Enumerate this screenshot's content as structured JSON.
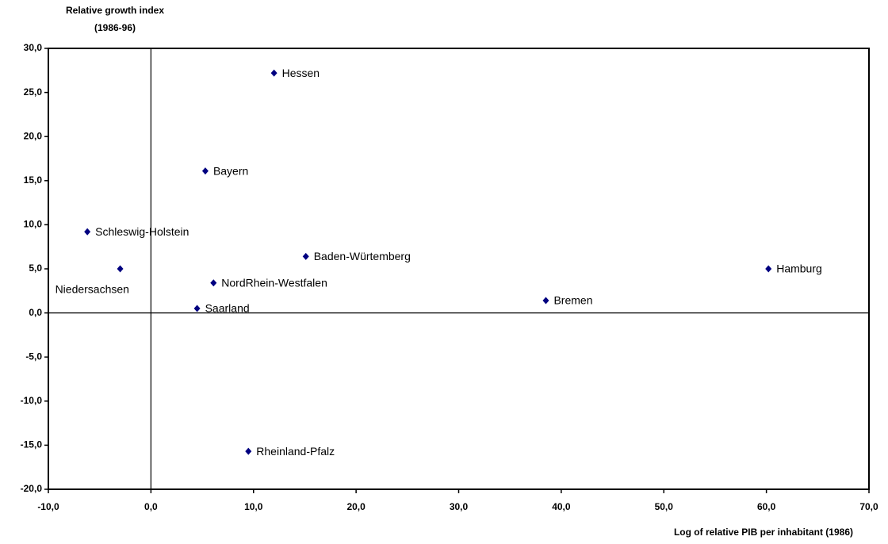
{
  "chart_data": {
    "type": "scatter",
    "y_label": [
      "Relative growth index",
      "(1986-96)"
    ],
    "x_label": "Log of relative PIB per inhabitant (1986)",
    "labels": [
      "Hessen",
      "Bayern",
      "Schleswig-Holstein",
      "Niedersachsen",
      "Baden-Würtemberg",
      "NordRhein-Westfalen",
      "Saarland",
      "Bremen",
      "Hamburg",
      "Rheinland-Pfalz"
    ],
    "x": [
      12.0,
      5.3,
      -6.2,
      -3.0,
      15.1,
      6.1,
      4.5,
      38.5,
      60.2,
      9.5
    ],
    "values": [
      27.2,
      16.1,
      9.2,
      5.0,
      6.4,
      3.4,
      0.5,
      1.4,
      5.0,
      -15.7
    ],
    "color": "#000080",
    "xlim": [
      -10,
      70
    ],
    "ylim": [
      -20,
      30
    ],
    "xticks": [
      {
        "value": -10,
        "label": "-10,0"
      },
      {
        "value": 0,
        "label": "0,0"
      },
      {
        "value": 10,
        "label": "10,0"
      },
      {
        "value": 20,
        "label": "20,0"
      },
      {
        "value": 30,
        "label": "30,0"
      },
      {
        "value": 40,
        "label": "40,0"
      },
      {
        "value": 50,
        "label": "50,0"
      },
      {
        "value": 60,
        "label": "60,0"
      },
      {
        "value": 70,
        "label": "70,0"
      }
    ],
    "yticks": [
      {
        "value": -20,
        "label": "-20,0"
      },
      {
        "value": -15,
        "label": "-15,0"
      },
      {
        "value": -10,
        "label": "-10,0"
      },
      {
        "value": -5,
        "label": "-5,0"
      },
      {
        "value": 0,
        "label": "0,0"
      },
      {
        "value": 5,
        "label": "5,0"
      },
      {
        "value": 10,
        "label": "10,0"
      },
      {
        "value": 15,
        "label": "15,0"
      },
      {
        "value": 20,
        "label": "20,0"
      },
      {
        "value": 25,
        "label": "25,0"
      },
      {
        "value": 30,
        "label": "30,0"
      }
    ]
  }
}
